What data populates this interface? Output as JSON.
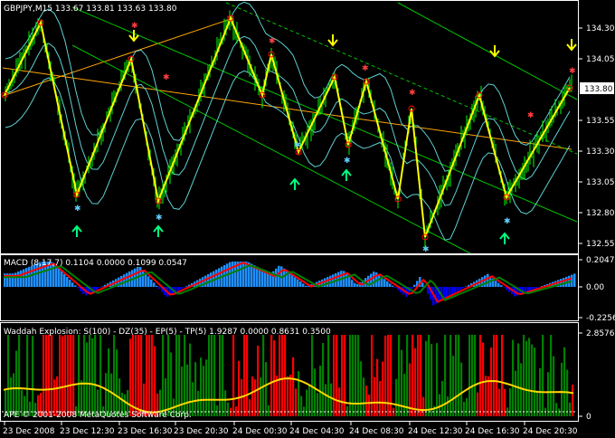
{
  "main_panel": {
    "symbol_info": "GBPJPY,M15  133.67 133.81 133.63 133.80",
    "price_ticks": [
      "134.30",
      "134.05",
      "133.80",
      "133.55",
      "133.30",
      "133.05",
      "132.80",
      "132.55"
    ],
    "current_price": "133.80",
    "colors": {
      "bull": "#00ff00",
      "bear": "#ff0000",
      "zigzag": "#ffff00",
      "channel": "#00c000",
      "bands": "#5fd0d0",
      "trend": "#ffa500"
    }
  },
  "macd_panel": {
    "label": "MACD  (8,17,7) 0.1104 0.0000 0.1099 0.0547",
    "ticks": [
      "0.2047",
      "0.00",
      "-0.2256"
    ],
    "colors": {
      "hist_up": "#1e90ff",
      "hist_down": "#0000ff",
      "signal": "#ff0000",
      "macd": "#008000"
    }
  },
  "waddah_panel": {
    "label": "Waddah Explosion: S(100) - DZ(35) - EP(5) - TP(5) 1.9287 0.0000 0.8631 0.3500",
    "ticks": [
      "2.8576",
      "0"
    ],
    "copyright": "APE © 2001-2008 MetaQuotes Software Corp.",
    "colors": {
      "up": "#008000",
      "down": "#ff0000",
      "explosion": "#ffd700"
    }
  },
  "time_axis": {
    "labels": [
      "23 Dec 2008",
      "23 Dec 12:30",
      "23 Dec 16:30",
      "23 Dec 20:30",
      "24 Dec 00:30",
      "24 Dec 04:30",
      "24 Dec 08:30",
      "24 Dec 12:30",
      "24 Dec 16:30",
      "24 Dec 20:30"
    ]
  }
}
